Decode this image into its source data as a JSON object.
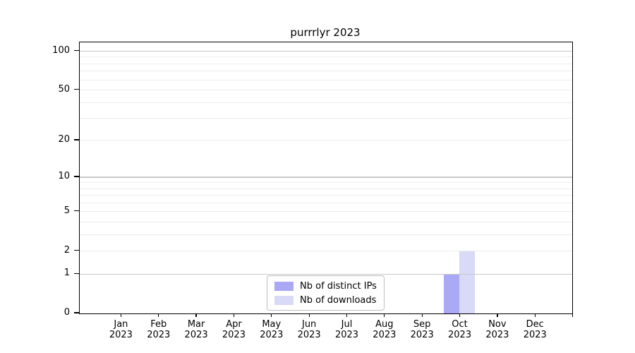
{
  "title": "purrrlyr 2023",
  "colors": {
    "bar_distinct_ips": "#a9a9f5",
    "bar_downloads": "#d9d9f8",
    "grid_major": "#c8c8c8",
    "grid_minor": "#ececec",
    "axis": "#000000",
    "legend_border": "#bdbdbd",
    "background": "#ffffff"
  },
  "legend": {
    "items": [
      {
        "label": "Nb of distinct IPs",
        "color": "#a9a9f5"
      },
      {
        "label": "Nb of downloads",
        "color": "#d9d9f8"
      }
    ]
  },
  "chart_data": {
    "type": "bar",
    "title": "purrrlyr 2023",
    "categories": [
      "Jan 2023",
      "Feb 2023",
      "Mar 2023",
      "Apr 2023",
      "May 2023",
      "Jun 2023",
      "Jul 2023",
      "Aug 2023",
      "Sep 2023",
      "Oct 2023",
      "Nov 2023",
      "Dec 2023"
    ],
    "series": [
      {
        "name": "Nb of distinct IPs",
        "color": "#a9a9f5",
        "values": [
          0,
          0,
          0,
          0,
          0,
          0,
          0,
          0,
          0,
          1,
          0,
          0
        ]
      },
      {
        "name": "Nb of downloads",
        "color": "#d9d9f8",
        "values": [
          0,
          0,
          0,
          0,
          0,
          0,
          0,
          0,
          0,
          2,
          0,
          0
        ]
      }
    ],
    "xlabel": "",
    "ylabel": "",
    "yaxis": {
      "scale": "log1p",
      "tick_values": [
        0,
        1,
        2,
        5,
        10,
        20,
        50,
        100
      ],
      "major_gridline_values": [
        1,
        10,
        100
      ],
      "minor_gridline_values": [
        2,
        3,
        4,
        5,
        6,
        7,
        8,
        9,
        20,
        30,
        40,
        50,
        60,
        70,
        80,
        90
      ],
      "ylim_top_approx": 116
    },
    "grid": true,
    "legend_position": "lower center"
  }
}
